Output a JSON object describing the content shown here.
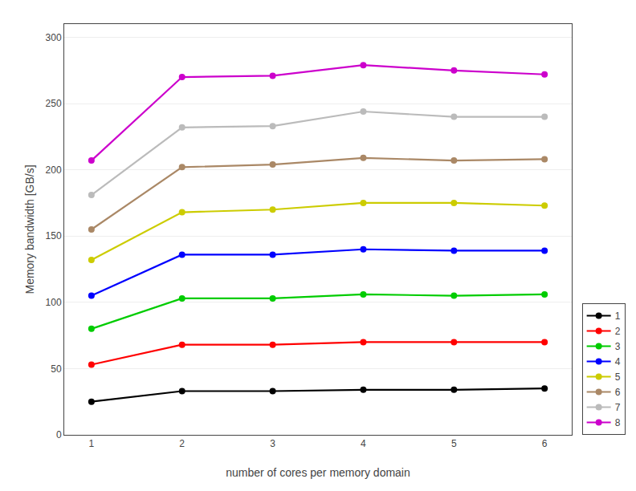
{
  "chart_data": {
    "type": "line",
    "xlabel": "number of cores per memory domain",
    "ylabel": "Memory bandwidth [GB/s]",
    "x": [
      1,
      2,
      3,
      4,
      5,
      6
    ],
    "series": [
      {
        "name": "1",
        "color": "#000000",
        "values": [
          25,
          33,
          33,
          34,
          34,
          35
        ]
      },
      {
        "name": "2",
        "color": "#ff0000",
        "values": [
          53,
          68,
          68,
          70,
          70,
          70
        ]
      },
      {
        "name": "3",
        "color": "#00cc00",
        "values": [
          80,
          103,
          103,
          106,
          105,
          106
        ]
      },
      {
        "name": "4",
        "color": "#0000ff",
        "values": [
          105,
          136,
          136,
          140,
          139,
          139
        ]
      },
      {
        "name": "5",
        "color": "#cccc00",
        "values": [
          132,
          168,
          170,
          175,
          175,
          173
        ]
      },
      {
        "name": "6",
        "color": "#aa8866",
        "values": [
          155,
          202,
          204,
          209,
          207,
          208
        ]
      },
      {
        "name": "7",
        "color": "#bbbbbb",
        "values": [
          181,
          232,
          233,
          244,
          240,
          240
        ]
      },
      {
        "name": "8",
        "color": "#cc00cc",
        "values": [
          207,
          270,
          271,
          279,
          275,
          272
        ]
      }
    ],
    "xlim": [
      0.7,
      6.3
    ],
    "ylim": [
      0,
      310
    ],
    "xticks": [
      1,
      2,
      3,
      4,
      5,
      6
    ],
    "yticks": [
      0,
      50,
      100,
      150,
      200,
      250,
      300
    ],
    "grid": "y",
    "legend": "lower right",
    "marker": "circle",
    "line_style": "solid"
  }
}
